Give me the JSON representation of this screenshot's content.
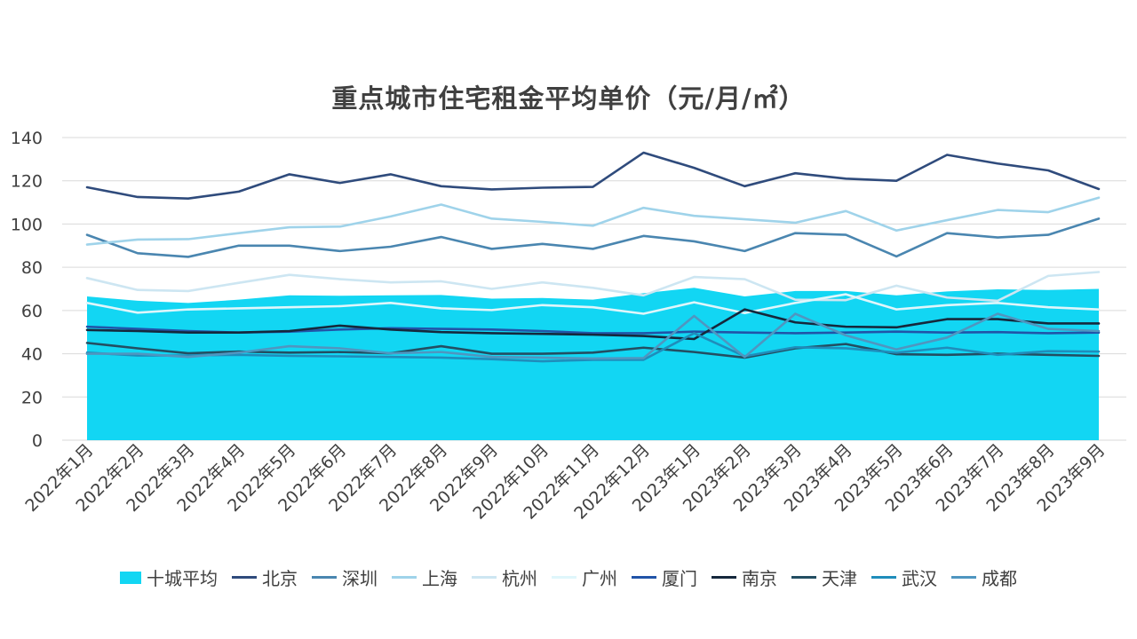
{
  "chart_data": {
    "type": "line",
    "title": "重点城市住宅租金平均单价（元/月/㎡）",
    "categories": [
      "2022年1月",
      "2022年2月",
      "2022年3月",
      "2022年4月",
      "2022年5月",
      "2022年6月",
      "2022年7月",
      "2022年8月",
      "2022年9月",
      "2022年10月",
      "2022年11月",
      "2022年12月",
      "2023年1月",
      "2023年2月",
      "2023年3月",
      "2023年4月",
      "2023年5月",
      "2023年6月",
      "2023年7月",
      "2023年8月",
      "2023年9月"
    ],
    "ylim": [
      0,
      140
    ],
    "yticks": [
      0,
      20,
      40,
      60,
      80,
      100,
      120,
      140
    ],
    "grid": true,
    "legend_position": "bottom",
    "series": [
      {
        "name": "十城平均",
        "kind": "area",
        "color": "#12d6f3",
        "values": [
          66.5,
          64.5,
          63.5,
          65.0,
          67.0,
          66.8,
          67.0,
          67.2,
          65.5,
          65.8,
          65.0,
          68.0,
          70.5,
          66.5,
          69.0,
          69.0,
          67.0,
          68.8,
          69.8,
          69.5,
          70.0
        ]
      },
      {
        "name": "北京",
        "kind": "line",
        "color": "#2f4b7c",
        "values": [
          117,
          112.5,
          111.8,
          115,
          123,
          119,
          123,
          117.5,
          116,
          116.8,
          117.2,
          133,
          126,
          117.5,
          123.5,
          121,
          120,
          132,
          128,
          124.8,
          116.2
        ]
      },
      {
        "name": "深圳",
        "kind": "line",
        "color": "#4a86b0",
        "values": [
          95,
          86.5,
          84.8,
          90,
          90,
          87.5,
          89.5,
          94,
          88.5,
          90.8,
          88.5,
          94.5,
          92,
          87.5,
          95.8,
          95,
          85,
          95.8,
          93.8,
          95,
          102.5
        ]
      },
      {
        "name": "上海",
        "kind": "line",
        "color": "#9fd3ea",
        "values": [
          90.5,
          92.8,
          93,
          95.8,
          98.5,
          98.8,
          103.5,
          109,
          102.5,
          101,
          99.2,
          107.5,
          103.8,
          102.2,
          100.6,
          106,
          97,
          101.8,
          106.5,
          105.5,
          112.2
        ]
      },
      {
        "name": "杭州",
        "kind": "line",
        "color": "#cde6f2",
        "values": [
          75,
          69.5,
          69,
          72.8,
          76.5,
          74.5,
          73,
          73.5,
          70,
          73,
          70.5,
          67,
          75.5,
          74.5,
          65,
          64.8,
          71.5,
          66,
          64.5,
          76,
          77.8
        ]
      },
      {
        "name": "广州",
        "kind": "line",
        "color": "#dff6fb",
        "values": [
          63.5,
          59,
          60.5,
          61,
          61.5,
          62,
          63.5,
          61,
          60.2,
          62.5,
          61.5,
          58.5,
          63.8,
          58.8,
          63.5,
          67.5,
          60.5,
          62.5,
          63.5,
          61.5,
          60.5
        ]
      },
      {
        "name": "厦门",
        "kind": "line",
        "color": "#2154a8",
        "values": [
          52.5,
          51.5,
          50.5,
          49.8,
          50.2,
          51.2,
          51.8,
          51.5,
          51.2,
          50.5,
          49.5,
          49.5,
          50.2,
          49.8,
          49.5,
          49.8,
          50.2,
          49.8,
          50,
          49.5,
          49.8
        ]
      },
      {
        "name": "南京",
        "kind": "line",
        "color": "#15283c",
        "values": [
          51,
          50.5,
          49.8,
          49.8,
          50.5,
          53,
          51.2,
          50,
          49.5,
          49.2,
          48.8,
          48.2,
          46.8,
          60.5,
          54.5,
          52.5,
          52.2,
          56,
          56,
          54,
          54
        ]
      },
      {
        "name": "天津",
        "kind": "line",
        "color": "#234e62",
        "values": [
          45,
          42.5,
          40.2,
          41,
          40.5,
          40.8,
          40.2,
          43.5,
          40,
          40,
          40.5,
          42.8,
          40.8,
          38.2,
          42.5,
          44.5,
          39.8,
          39.5,
          40,
          39.5,
          39
        ]
      },
      {
        "name": "武汉",
        "kind": "line",
        "color": "#1f8dbb",
        "values": [
          40.5,
          39.2,
          39.2,
          39.5,
          39,
          38.8,
          38.5,
          38.2,
          37.5,
          36.5,
          37.2,
          37.2,
          49.5,
          38.8,
          43,
          42.5,
          40.5,
          42.8,
          39.5,
          41.2,
          41
        ]
      },
      {
        "name": "成都",
        "kind": "line",
        "color": "#4f96c0",
        "values": [
          40,
          40,
          38.5,
          40.5,
          43.5,
          42.5,
          40.2,
          40.8,
          38.5,
          38.2,
          37.8,
          38,
          57.5,
          38.5,
          58.5,
          48.5,
          42,
          47.5,
          58.5,
          51.5,
          50.5
        ]
      }
    ]
  }
}
